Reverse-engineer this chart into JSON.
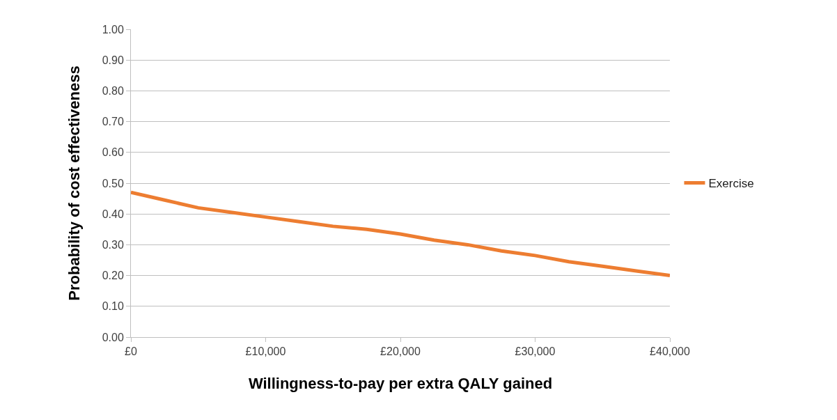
{
  "chart_data": {
    "type": "line",
    "xlabel": "Willingness-to-pay per extra QALY gained",
    "ylabel": "Probability of cost effectiveness",
    "x": [
      0,
      2500,
      5000,
      7500,
      10000,
      12500,
      15000,
      17500,
      20000,
      22500,
      25000,
      27500,
      30000,
      32500,
      35000,
      37500,
      40000
    ],
    "series": [
      {
        "name": "Exercise",
        "color": "#ed7d31",
        "values": [
          0.47,
          0.445,
          0.42,
          0.405,
          0.39,
          0.375,
          0.36,
          0.35,
          0.335,
          0.315,
          0.3,
          0.28,
          0.265,
          0.245,
          0.23,
          0.215,
          0.2
        ]
      }
    ],
    "xlim": [
      0,
      40000
    ],
    "xticks": [
      {
        "value": 0,
        "label": "£0"
      },
      {
        "value": 10000,
        "label": "£10,000"
      },
      {
        "value": 20000,
        "label": "£20,000"
      },
      {
        "value": 30000,
        "label": "£30,000"
      },
      {
        "value": 40000,
        "label": "£40,000"
      }
    ],
    "ylim": [
      0,
      1
    ],
    "yticks": [
      {
        "value": 0,
        "label": "0.00"
      },
      {
        "value": 0.1,
        "label": "0.10"
      },
      {
        "value": 0.2,
        "label": "0.20"
      },
      {
        "value": 0.3,
        "label": "0.30"
      },
      {
        "value": 0.4,
        "label": "0.40"
      },
      {
        "value": 0.5,
        "label": "0.50"
      },
      {
        "value": 0.6,
        "label": "0.60"
      },
      {
        "value": 0.7,
        "label": "0.70"
      },
      {
        "value": 0.8,
        "label": "0.80"
      },
      {
        "value": 0.9,
        "label": "0.90"
      },
      {
        "value": 1,
        "label": "1.00"
      }
    ],
    "grid": "y",
    "legend": "right",
    "marker": "none",
    "line_style": "solid"
  }
}
